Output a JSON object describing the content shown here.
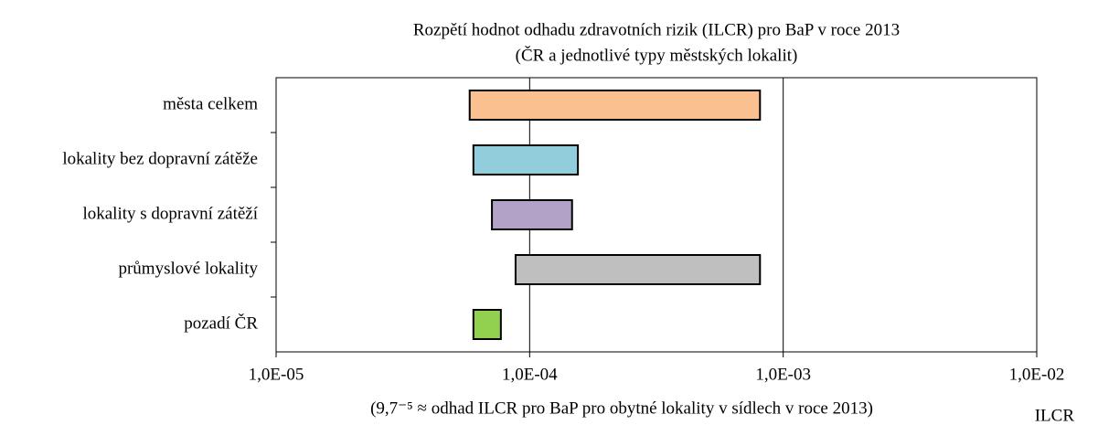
{
  "chart_data": {
    "type": "range-bar",
    "title": "Rozpětí hodnot odhadu zdravotních rizik (ILCR) pro BaP v roce 2013",
    "subtitle": "(ČR a jednotlivé typy městských lokalit)",
    "categories": [
      "města celkem",
      "lokality bez dopravní zátěže",
      "lokality s dopravní zátěží",
      "průmyslové lokality",
      "pozadí ČR"
    ],
    "low": [
      5.8e-05,
      6e-05,
      7.1e-05,
      8.8e-05,
      6e-05
    ],
    "high": [
      0.00081,
      0.000155,
      0.000147,
      0.00081,
      7.7e-05
    ],
    "colors": [
      "#fac090",
      "#92cddc",
      "#b3a2c7",
      "#bfbfbf",
      "#92d050"
    ],
    "xscale": "log",
    "xlim": [
      1e-05,
      0.01
    ],
    "xticks": [
      {
        "value": 1e-05,
        "label": "1,0E-05"
      },
      {
        "value": 0.0001,
        "label": "1,0E-04"
      },
      {
        "value": 0.001,
        "label": "1,0E-03"
      },
      {
        "value": 0.01,
        "label": "1,0E-02"
      }
    ],
    "grid": true,
    "xlabel": "ILCR",
    "note": "(9,7⁻⁵ ≈ odhad ILCR pro BaP pro obytné lokality v sídlech v roce 2013)"
  }
}
